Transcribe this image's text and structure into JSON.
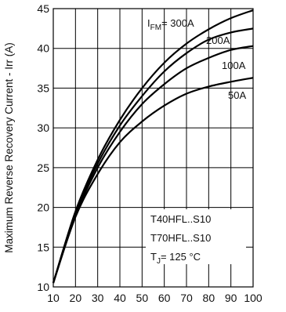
{
  "chart_data": {
    "type": "line",
    "title": "",
    "xlabel": "",
    "ylabel": "Maximum Reverse Recovery Current - Irr (A)",
    "xlim": [
      10,
      100
    ],
    "ylim": [
      10,
      45
    ],
    "x_ticks": [
      "10",
      "20",
      "30",
      "40",
      "50",
      "60",
      "70",
      "80",
      "90",
      "100"
    ],
    "y_ticks": [
      "10",
      "15",
      "20",
      "25",
      "30",
      "35",
      "40",
      "45"
    ],
    "grid": true,
    "series": [
      {
        "name": "300A",
        "x": [
          10,
          20,
          30,
          40,
          50,
          60,
          70,
          80,
          90,
          100
        ],
        "y": [
          10.5,
          19.5,
          26.0,
          31.0,
          35.0,
          38.2,
          40.6,
          42.4,
          43.8,
          44.8
        ]
      },
      {
        "name": "200A",
        "x": [
          10,
          20,
          30,
          40,
          50,
          60,
          70,
          80,
          90,
          100
        ],
        "y": [
          10.5,
          19.3,
          25.5,
          30.3,
          34.0,
          37.1,
          39.4,
          41.1,
          42.0,
          42.5
        ]
      },
      {
        "name": "100A",
        "x": [
          10,
          20,
          30,
          40,
          50,
          60,
          70,
          80,
          90,
          100
        ],
        "y": [
          10.5,
          19.0,
          25.0,
          29.5,
          33.0,
          35.5,
          37.5,
          38.8,
          39.8,
          40.3
        ]
      },
      {
        "name": "50A",
        "x": [
          10,
          20,
          30,
          40,
          50,
          60,
          70,
          80,
          90,
          100
        ],
        "y": [
          10.5,
          18.8,
          24.2,
          28.2,
          30.8,
          32.8,
          34.3,
          35.2,
          35.8,
          36.3
        ]
      }
    ],
    "annotations": {
      "ifm_prefix": "I",
      "ifm_sub": "FM",
      "ifm_value": "= 300A",
      "device_line1": "T40HFL..S10",
      "device_line2": "T70HFL..S10",
      "tj_prefix": "T",
      "tj_sub": "J",
      "tj_value": "= 125 °C"
    }
  }
}
